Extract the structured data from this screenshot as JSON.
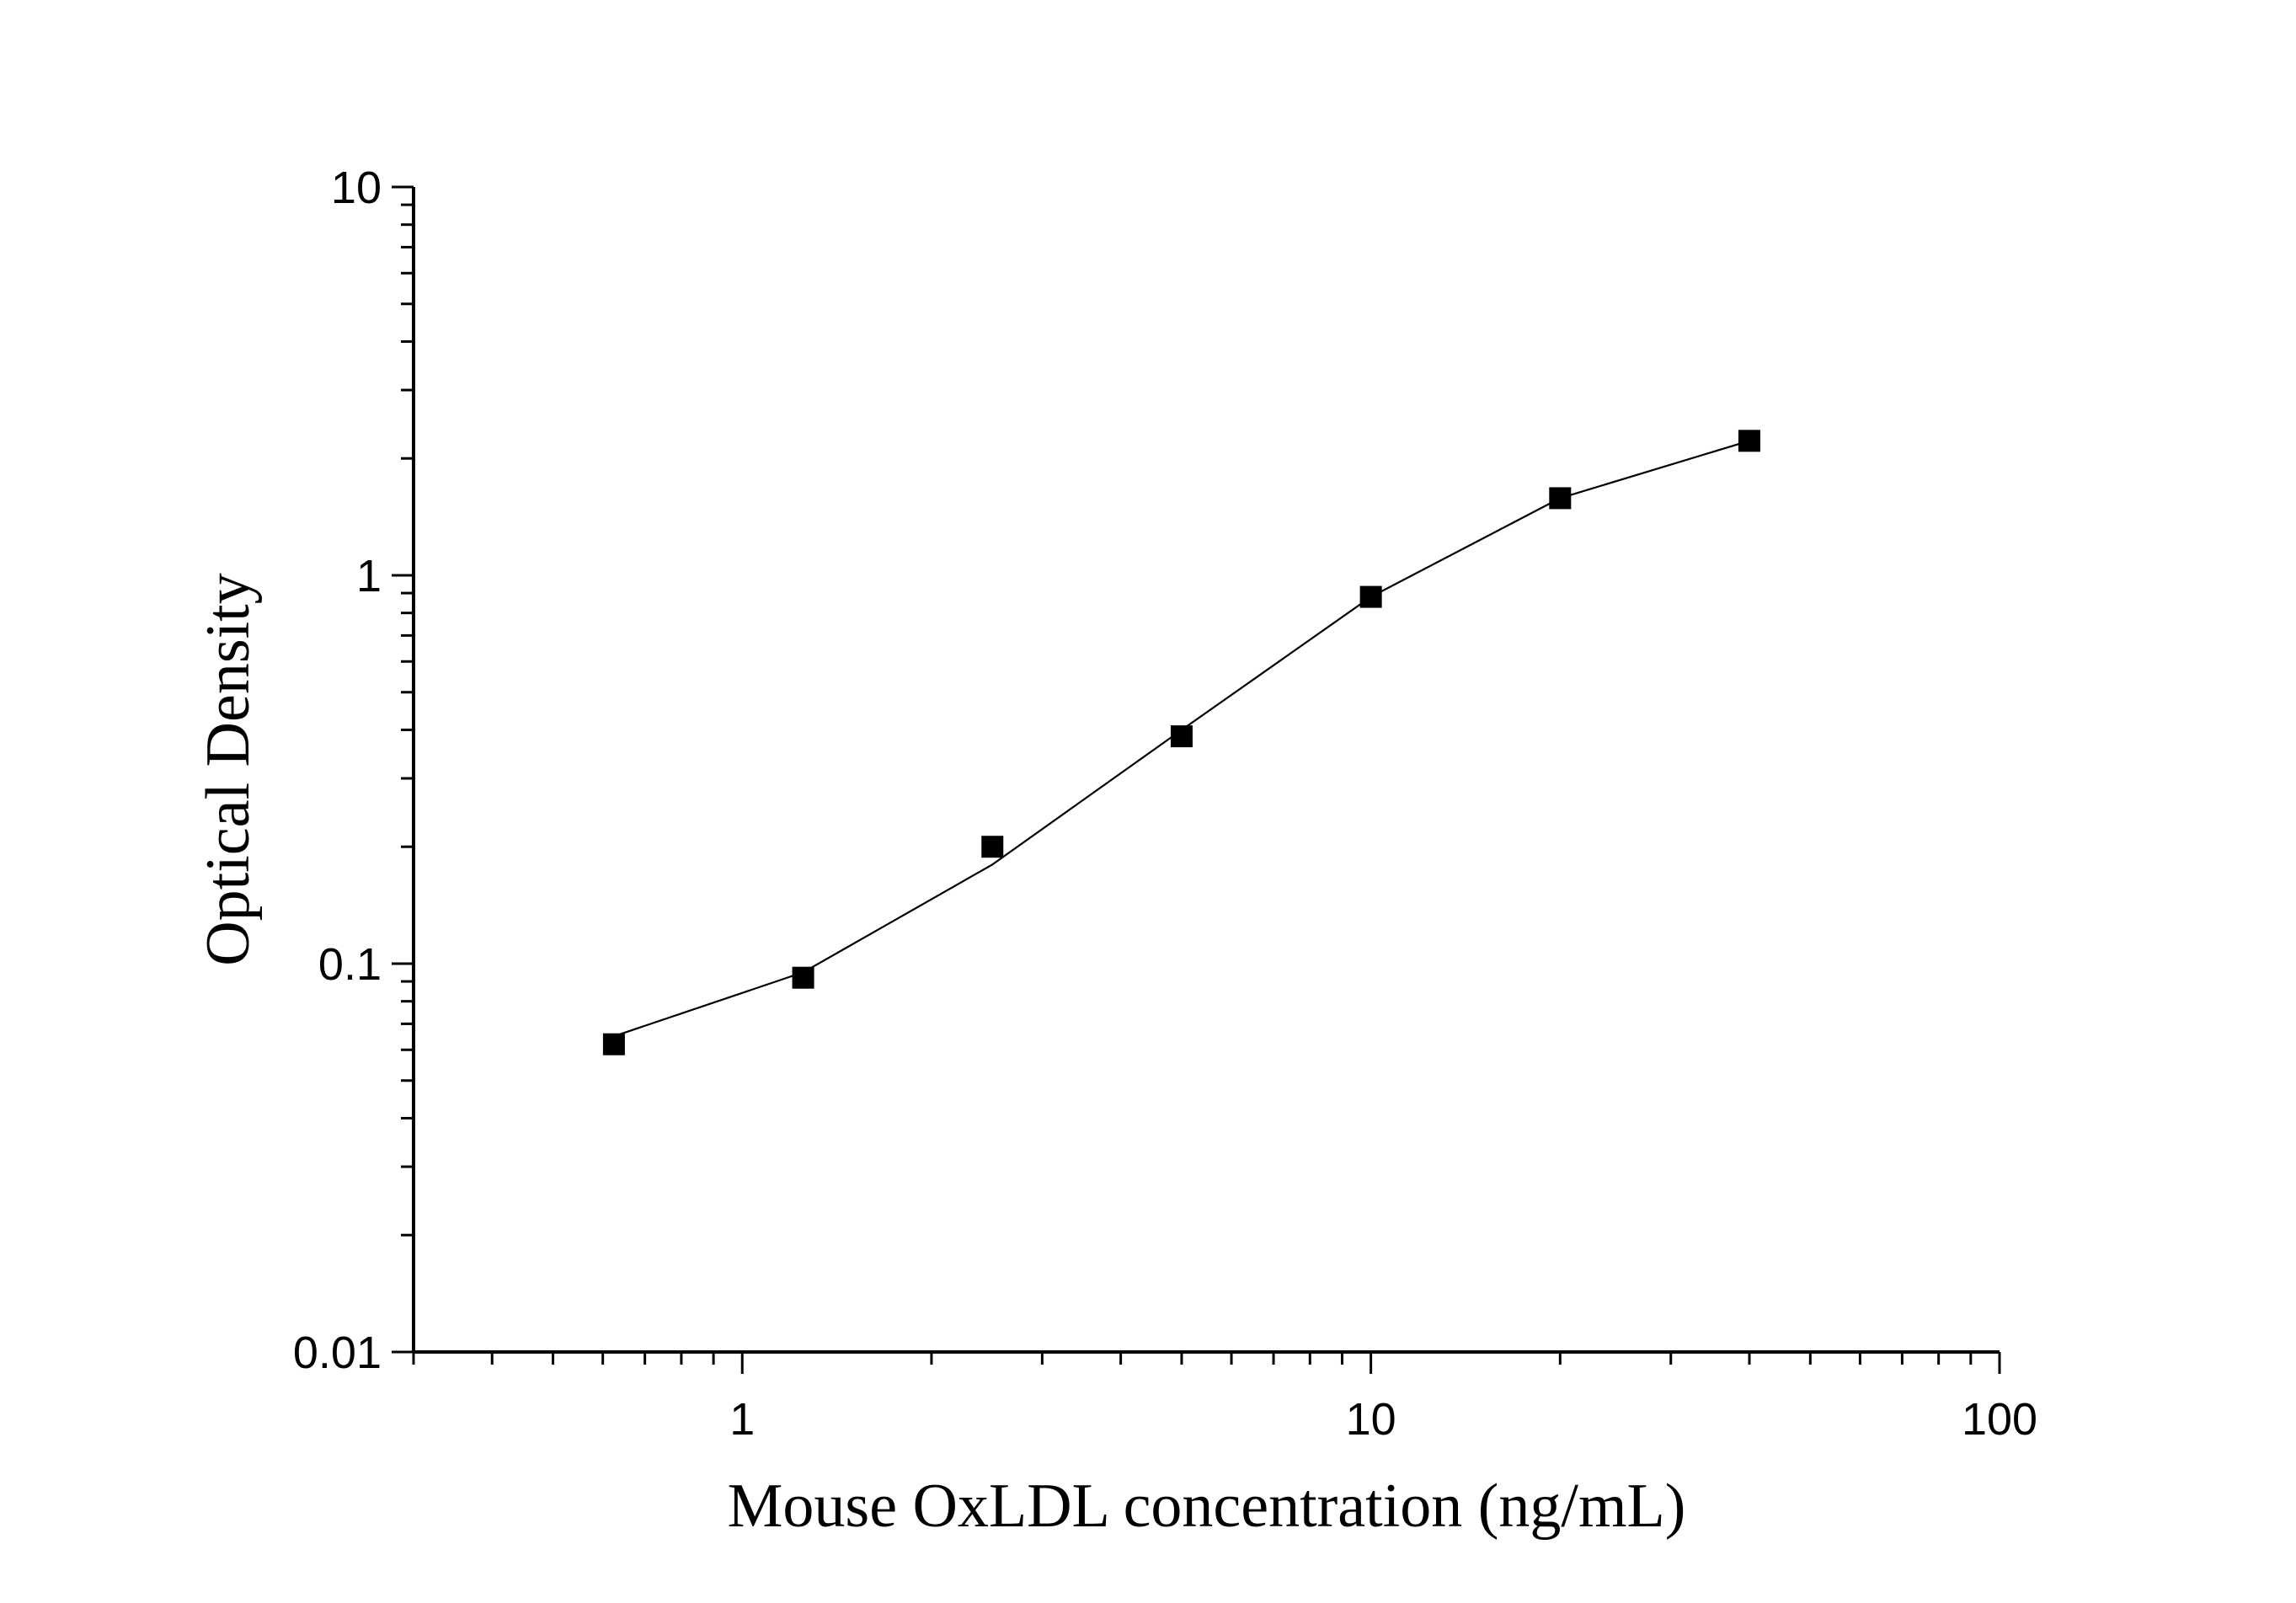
{
  "chart_data": {
    "type": "scatter",
    "title": "",
    "xlabel": "Mouse OxLDL concentration (ng/mL)",
    "ylabel": "Optical Density",
    "xscale": "log",
    "yscale": "log",
    "xlim": [
      0.3,
      100
    ],
    "ylim": [
      0.01,
      10
    ],
    "x_tick_labels": [
      {
        "value": 1,
        "label": "1"
      },
      {
        "value": 10,
        "label": "10"
      },
      {
        "value": 100,
        "label": "100"
      }
    ],
    "y_tick_labels": [
      {
        "value": 0.01,
        "label": "0.01"
      },
      {
        "value": 0.1,
        "label": "0.1"
      },
      {
        "value": 1,
        "label": "1"
      },
      {
        "value": 10,
        "label": "10"
      }
    ],
    "grid": false,
    "legend": "none",
    "marker": "filled-square",
    "line": "fitted-curve",
    "color": "#000000",
    "series": [
      {
        "x": [
          0.625,
          1.25,
          2.5,
          5,
          10,
          20,
          40
        ],
        "y": [
          0.062,
          0.092,
          0.2,
          0.385,
          0.88,
          1.58,
          2.22
        ],
        "fit": [
          0.065,
          0.095,
          0.18,
          0.4,
          0.88,
          1.58,
          2.22
        ]
      }
    ]
  }
}
